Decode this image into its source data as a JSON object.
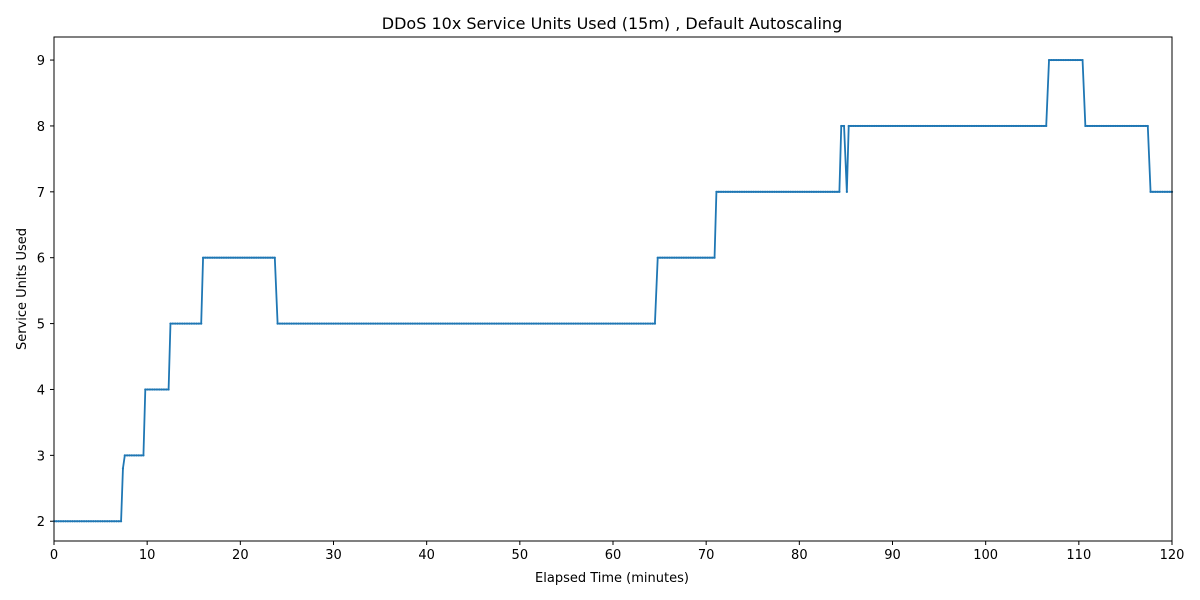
{
  "chart_data": {
    "type": "line",
    "title": "DDoS 10x Service Units Used (15m) , Default Autoscaling",
    "xlabel": "Elapsed Time (minutes)",
    "ylabel": "Service Units Used",
    "xlim": [
      0,
      120
    ],
    "ylim": [
      1.7,
      9.35
    ],
    "xticks": [
      0,
      10,
      20,
      30,
      40,
      50,
      60,
      70,
      80,
      90,
      100,
      110,
      120
    ],
    "yticks": [
      2,
      3,
      4,
      5,
      6,
      7,
      8,
      9
    ],
    "grid": false,
    "legend": "none",
    "series": [
      {
        "color": "#1f77b4",
        "marker": "dot",
        "points": [
          [
            0,
            2
          ],
          [
            7.2,
            2
          ],
          [
            7.4,
            2.8
          ],
          [
            7.6,
            3
          ],
          [
            9.6,
            3
          ],
          [
            9.8,
            4
          ],
          [
            12.3,
            4
          ],
          [
            12.5,
            5
          ],
          [
            15.8,
            5
          ],
          [
            16.0,
            6
          ],
          [
            23.7,
            6
          ],
          [
            24.0,
            5
          ],
          [
            64.5,
            5
          ],
          [
            64.8,
            6
          ],
          [
            70.9,
            6
          ],
          [
            71.1,
            7
          ],
          [
            84.3,
            7
          ],
          [
            84.5,
            8
          ],
          [
            84.8,
            8
          ],
          [
            85.1,
            7
          ],
          [
            85.3,
            8
          ],
          [
            106.5,
            8
          ],
          [
            106.8,
            9
          ],
          [
            110.4,
            9
          ],
          [
            110.7,
            8
          ],
          [
            117.4,
            8
          ],
          [
            117.7,
            7
          ],
          [
            120,
            7
          ]
        ]
      }
    ]
  }
}
